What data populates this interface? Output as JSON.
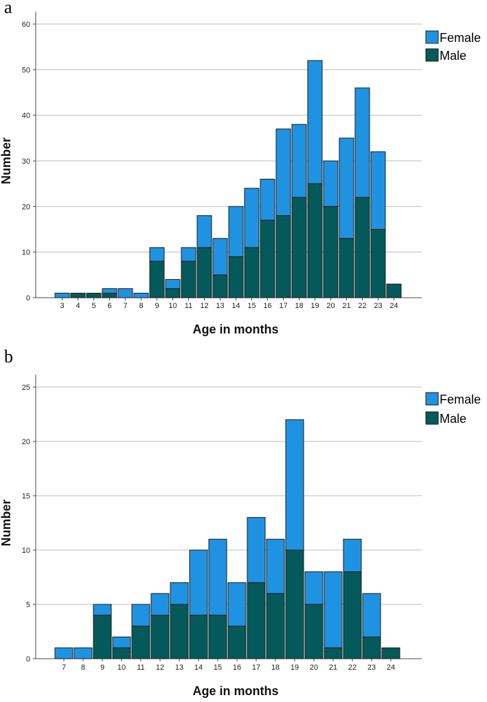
{
  "chart_data": [
    {
      "panel": "a",
      "type": "bar",
      "stacked": true,
      "xlabel": "Age in months",
      "ylabel": "Number",
      "ylim": [
        0,
        60
      ],
      "yticks": [
        0,
        10,
        20,
        30,
        40,
        50,
        60
      ],
      "grid": true,
      "legend": "top-right",
      "categories": [
        "3",
        "4",
        "5",
        "6",
        "7",
        "8",
        "9",
        "10",
        "11",
        "12",
        "13",
        "14",
        "15",
        "16",
        "17",
        "18",
        "19",
        "20",
        "21",
        "22",
        "23",
        "24"
      ],
      "series": [
        {
          "name": "Male",
          "color": "#045a5a",
          "values": [
            0,
            1,
            1,
            1,
            0,
            0,
            8,
            2,
            8,
            11,
            5,
            9,
            11,
            17,
            18,
            22,
            25,
            20,
            13,
            22,
            15,
            3
          ]
        },
        {
          "name": "Female",
          "color": "#1f93e2",
          "values": [
            1,
            0,
            0,
            1,
            2,
            1,
            3,
            2,
            3,
            7,
            8,
            11,
            13,
            9,
            19,
            16,
            27,
            10,
            22,
            24,
            17,
            0
          ]
        }
      ]
    },
    {
      "panel": "b",
      "type": "bar",
      "stacked": true,
      "xlabel": "Age in months",
      "ylabel": "Number",
      "ylim": [
        0,
        25
      ],
      "yticks": [
        0,
        5,
        10,
        15,
        20,
        25
      ],
      "grid": true,
      "legend": "top-right",
      "categories": [
        "7",
        "8",
        "9",
        "10",
        "11",
        "12",
        "13",
        "14",
        "15",
        "16",
        "17",
        "18",
        "19",
        "20",
        "21",
        "22",
        "23",
        "24"
      ],
      "series": [
        {
          "name": "Male",
          "color": "#045a5a",
          "values": [
            0,
            0,
            4,
            1,
            3,
            4,
            5,
            4,
            4,
            3,
            7,
            6,
            10,
            5,
            1,
            8,
            2,
            1
          ]
        },
        {
          "name": "Female",
          "color": "#1f93e2",
          "values": [
            1,
            1,
            1,
            1,
            2,
            2,
            2,
            6,
            7,
            4,
            6,
            5,
            12,
            3,
            7,
            3,
            4,
            0
          ]
        }
      ]
    }
  ]
}
